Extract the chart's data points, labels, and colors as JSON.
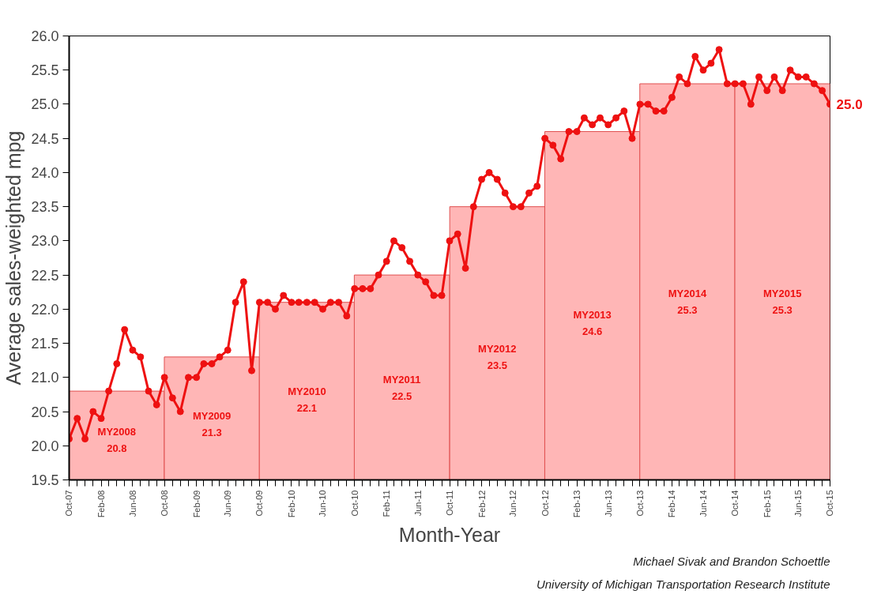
{
  "chart_data": {
    "type": "bar",
    "xlabel": "Month-Year",
    "ylabel": "Average sales-weighted mpg",
    "annotations": [
      "Michael Sivak and Brandon Schoettle",
      "University of Michigan Transportation Research Institute"
    ],
    "ylim": [
      19.5,
      26.0
    ],
    "yticks": [
      {
        "value": 19.5,
        "label": "19.5"
      },
      {
        "value": 20,
        "label": "20.0"
      },
      {
        "value": 20.5,
        "label": "20.5"
      },
      {
        "value": 21,
        "label": "21.0"
      },
      {
        "value": 21.5,
        "label": "21.5"
      },
      {
        "value": 22,
        "label": "22.0"
      },
      {
        "value": 22.5,
        "label": "22.5"
      },
      {
        "value": 23,
        "label": "23.0"
      },
      {
        "value": 23.5,
        "label": "23.5"
      },
      {
        "value": 24,
        "label": "24.0"
      },
      {
        "value": 24.5,
        "label": "24.5"
      },
      {
        "value": 25,
        "label": "25.0"
      },
      {
        "value": 25.5,
        "label": "25.5"
      },
      {
        "value": 26,
        "label": "26.0"
      }
    ],
    "xlim": [
      "2007-10",
      "2015-10"
    ],
    "xticks": [
      {
        "value": "2007-10",
        "label": "Oct-07"
      },
      {
        "value": "2008-02",
        "label": "Feb-08"
      },
      {
        "value": "2008-06",
        "label": "Jun-08"
      },
      {
        "value": "2008-10",
        "label": "Oct-08"
      },
      {
        "value": "2009-02",
        "label": "Feb-09"
      },
      {
        "value": "2009-06",
        "label": "Jun-09"
      },
      {
        "value": "2009-10",
        "label": "Oct-09"
      },
      {
        "value": "2010-02",
        "label": "Feb-10"
      },
      {
        "value": "2010-06",
        "label": "Jun-10"
      },
      {
        "value": "2010-10",
        "label": "Oct-10"
      },
      {
        "value": "2011-02",
        "label": "Feb-11"
      },
      {
        "value": "2011-06",
        "label": "Jun-11"
      },
      {
        "value": "2011-10",
        "label": "Oct-11"
      },
      {
        "value": "2012-02",
        "label": "Feb-12"
      },
      {
        "value": "2012-06",
        "label": "Jun-12"
      },
      {
        "value": "2012-10",
        "label": "Oct-12"
      },
      {
        "value": "2013-02",
        "label": "Feb-13"
      },
      {
        "value": "2013-06",
        "label": "Jun-13"
      },
      {
        "value": "2013-10",
        "label": "Oct-13"
      },
      {
        "value": "2014-02",
        "label": "Feb-14"
      },
      {
        "value": "2014-06",
        "label": "Jun-14"
      },
      {
        "value": "2014-10",
        "label": "Oct-14"
      },
      {
        "value": "2015-02",
        "label": "Feb-15"
      },
      {
        "value": "2015-06",
        "label": "Jun-15"
      },
      {
        "value": "2015-10",
        "label": "Oct-15"
      }
    ],
    "grid": false,
    "marker": "circle",
    "line_style": "solid",
    "series": [
      {
        "color": "#ffb6b6",
        "x": [
          "2008-04",
          "2009-04",
          "2010-04",
          "2011-04",
          "2012-04",
          "2013-04",
          "2014-04",
          "2015-04"
        ],
        "values": [
          20.8,
          21.3,
          22.1,
          22.5,
          23.5,
          24.6,
          25.3,
          25.3
        ],
        "value_labels": [
          "MY2008\n20.8",
          "MY2009\n21.3",
          "MY2010\n22.1",
          "MY2011\n22.5",
          "MY2012\n23.5",
          "MY2013\n24.6",
          "MY2014\n25.3",
          "MY2015\n25.3"
        ]
      },
      {
        "type": "line",
        "color": "#ee1111",
        "x": [
          "2007-10",
          "2007-11",
          "2007-12",
          "2008-01",
          "2008-02",
          "2008-03",
          "2008-04",
          "2008-05",
          "2008-06",
          "2008-07",
          "2008-08",
          "2008-09",
          "2008-10",
          "2008-11",
          "2008-12",
          "2009-01",
          "2009-02",
          "2009-03",
          "2009-04",
          "2009-05",
          "2009-06",
          "2009-07",
          "2009-08",
          "2009-09",
          "2009-10",
          "2009-11",
          "2009-12",
          "2010-01",
          "2010-02",
          "2010-03",
          "2010-04",
          "2010-05",
          "2010-06",
          "2010-07",
          "2010-08",
          "2010-09",
          "2010-10",
          "2010-11",
          "2010-12",
          "2011-01",
          "2011-02",
          "2011-03",
          "2011-04",
          "2011-05",
          "2011-06",
          "2011-07",
          "2011-08",
          "2011-09",
          "2011-10",
          "2011-11",
          "2011-12",
          "2012-01",
          "2012-02",
          "2012-03",
          "2012-04",
          "2012-05",
          "2012-06",
          "2012-07",
          "2012-08",
          "2012-09",
          "2012-10",
          "2012-11",
          "2012-12",
          "2013-01",
          "2013-02",
          "2013-03",
          "2013-04",
          "2013-05",
          "2013-06",
          "2013-07",
          "2013-08",
          "2013-09",
          "2013-10",
          "2013-11",
          "2013-12",
          "2014-01",
          "2014-02",
          "2014-03",
          "2014-04",
          "2014-05",
          "2014-06",
          "2014-07",
          "2014-08",
          "2014-09",
          "2014-10",
          "2014-11",
          "2014-12",
          "2015-01",
          "2015-02",
          "2015-03",
          "2015-04",
          "2015-05",
          "2015-06",
          "2015-07",
          "2015-08",
          "2015-09",
          "2015-10"
        ],
        "value_labels": [
          null,
          null,
          null,
          null,
          null,
          null,
          null,
          null,
          null,
          null,
          null,
          null,
          null,
          null,
          null,
          null,
          null,
          null,
          null,
          null,
          null,
          null,
          null,
          null,
          null,
          null,
          null,
          null,
          null,
          null,
          null,
          null,
          null,
          null,
          null,
          null,
          null,
          null,
          null,
          null,
          null,
          null,
          null,
          null,
          null,
          null,
          null,
          null,
          null,
          null,
          null,
          null,
          null,
          null,
          null,
          null,
          null,
          null,
          null,
          null,
          null,
          null,
          null,
          null,
          null,
          null,
          null,
          null,
          null,
          null,
          null,
          null,
          null,
          null,
          null,
          null,
          null,
          null,
          null,
          null,
          null,
          null,
          null,
          null,
          null,
          null,
          null,
          null,
          null,
          null,
          null,
          null,
          null,
          null,
          null,
          null,
          "25.0"
        ],
        "values": [
          20.1,
          20.4,
          20.1,
          20.5,
          20.4,
          20.8,
          21.2,
          21.7,
          21.4,
          21.3,
          20.8,
          20.6,
          21.0,
          20.7,
          20.5,
          21.0,
          21.0,
          21.2,
          21.2,
          21.3,
          21.4,
          22.1,
          22.4,
          21.1,
          22.1,
          22.1,
          22.0,
          22.2,
          22.1,
          22.1,
          22.1,
          22.1,
          22.0,
          22.1,
          22.1,
          21.9,
          22.3,
          22.3,
          22.3,
          22.5,
          22.7,
          23.0,
          22.9,
          22.7,
          22.5,
          22.4,
          22.2,
          22.2,
          23.0,
          23.1,
          22.6,
          23.5,
          23.9,
          24.0,
          23.9,
          23.7,
          23.5,
          23.5,
          23.7,
          23.8,
          24.5,
          24.4,
          24.2,
          24.6,
          24.6,
          24.8,
          24.7,
          24.8,
          24.7,
          24.8,
          24.9,
          24.5,
          25.0,
          25.0,
          24.9,
          24.9,
          25.1,
          25.4,
          25.3,
          25.7,
          25.5,
          25.6,
          25.8,
          25.3,
          25.3,
          25.3,
          25.0,
          25.4,
          25.2,
          25.4,
          25.2,
          25.5,
          25.4,
          25.4,
          25.3,
          25.2,
          25.0
        ]
      }
    ]
  }
}
